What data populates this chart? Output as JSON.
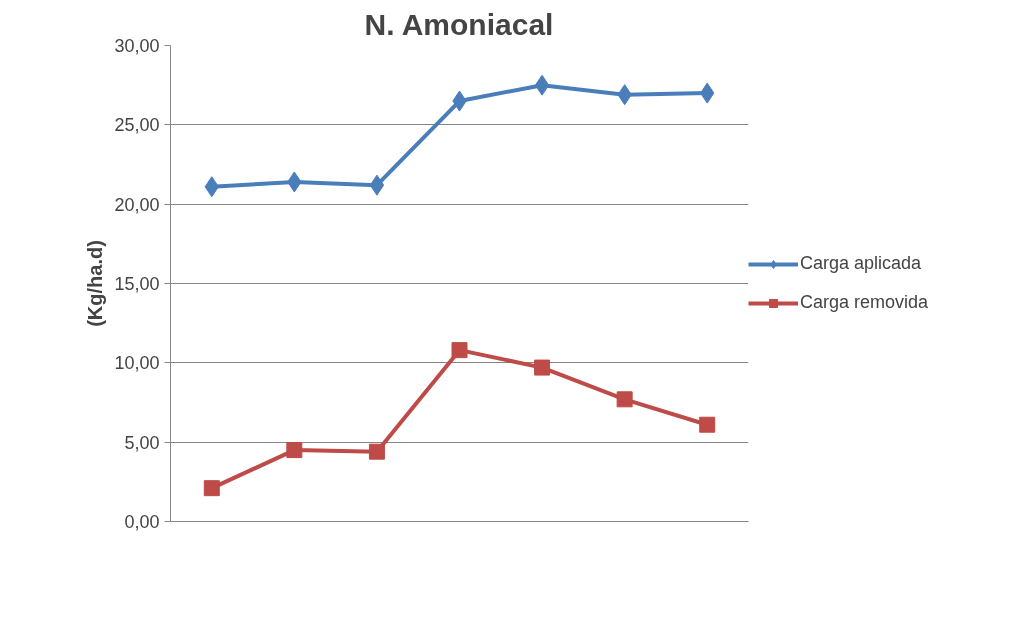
{
  "chart_data": {
    "type": "line",
    "title": "N. Amoniacal",
    "ylabel": "(Kg/ha.d)",
    "categories": [
      null,
      null,
      null,
      null,
      null,
      null,
      null
    ],
    "series": [
      {
        "name": "Carga aplicada",
        "color": "#4a7ebb",
        "marker": "diamond",
        "values": [
          21.1,
          21.4,
          21.2,
          26.5,
          27.5,
          26.9,
          27.0
        ]
      },
      {
        "name": "Carga removida",
        "color": "#be4b48",
        "marker": "square",
        "values": [
          2.1,
          4.5,
          4.4,
          10.8,
          9.7,
          7.7,
          6.1
        ]
      }
    ],
    "ylim": [
      0,
      30
    ],
    "yticks": [
      {
        "value": 0,
        "label": "0,00"
      },
      {
        "value": 5,
        "label": "5,00"
      },
      {
        "value": 10,
        "label": "10,00"
      },
      {
        "value": 15,
        "label": "15,00"
      },
      {
        "value": 20,
        "label": "20,00"
      },
      {
        "value": 25,
        "label": "25,00"
      },
      {
        "value": 30,
        "label": "30,00"
      }
    ],
    "grid": "y",
    "legend": "right"
  }
}
